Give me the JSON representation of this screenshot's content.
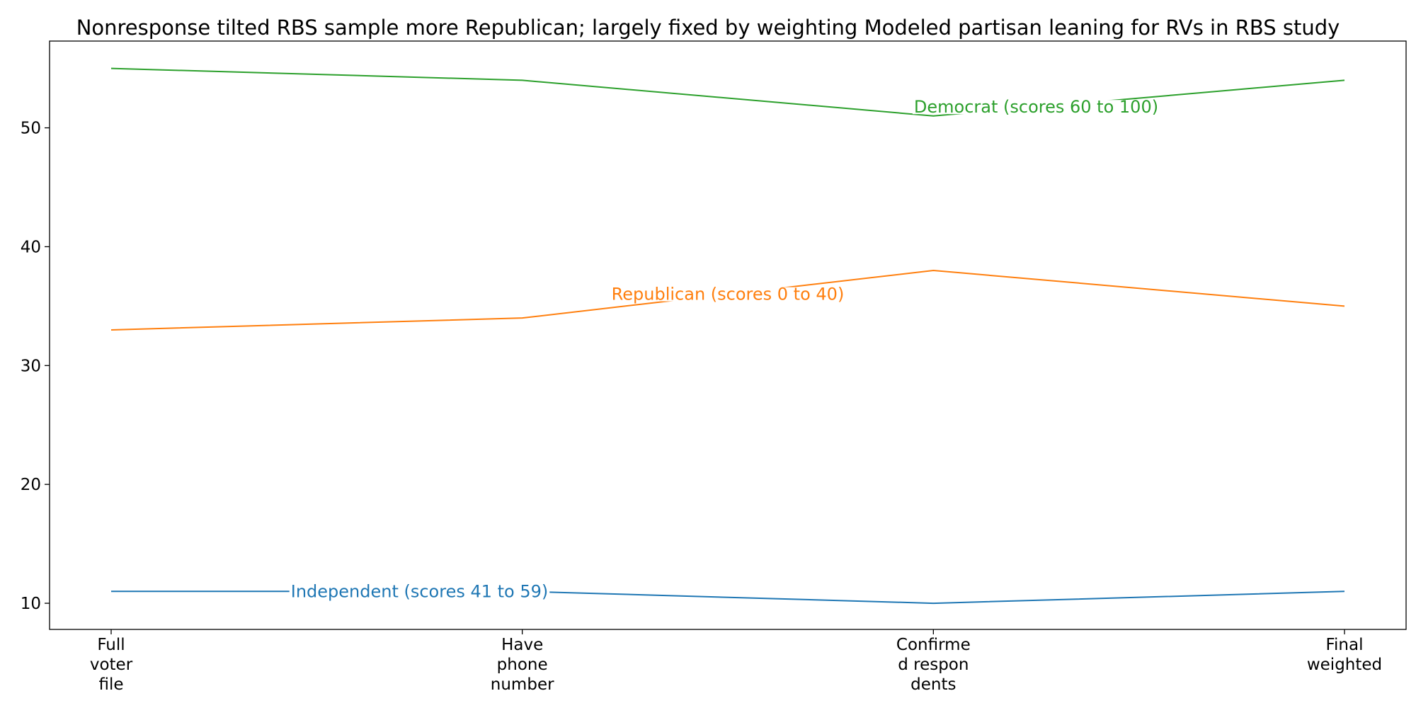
{
  "chart_data": {
    "type": "line",
    "title": "Nonresponse tilted RBS sample more Republican; largely fixed by weighting Modeled partisan leaning for RVs in RBS study",
    "xlabel": "",
    "ylabel": "",
    "categories": [
      [
        "Full",
        "voter",
        "file"
      ],
      [
        "Have",
        "phone",
        "number"
      ],
      [
        "Confirme",
        "d respon",
        "dents"
      ],
      [
        "Final",
        "weighted"
      ]
    ],
    "yticks": [
      10,
      20,
      30,
      40,
      50
    ],
    "ylim": [
      7.8,
      57.3
    ],
    "grid": false,
    "legend": "none",
    "series": [
      {
        "name": "Independent (scores 41 to 59)",
        "values": [
          11,
          11,
          10,
          11
        ],
        "color": "#1f77b4",
        "label_at": 0.75
      },
      {
        "name": "Republican (scores 0 to 40)",
        "values": [
          33,
          34,
          38,
          35
        ],
        "color": "#ff7f0e",
        "label_at": 1.5
      },
      {
        "name": "Democrat (scores 60 to 100)",
        "values": [
          55,
          54,
          51,
          54
        ],
        "color": "#2ca02c",
        "label_at": 2.25
      }
    ]
  }
}
